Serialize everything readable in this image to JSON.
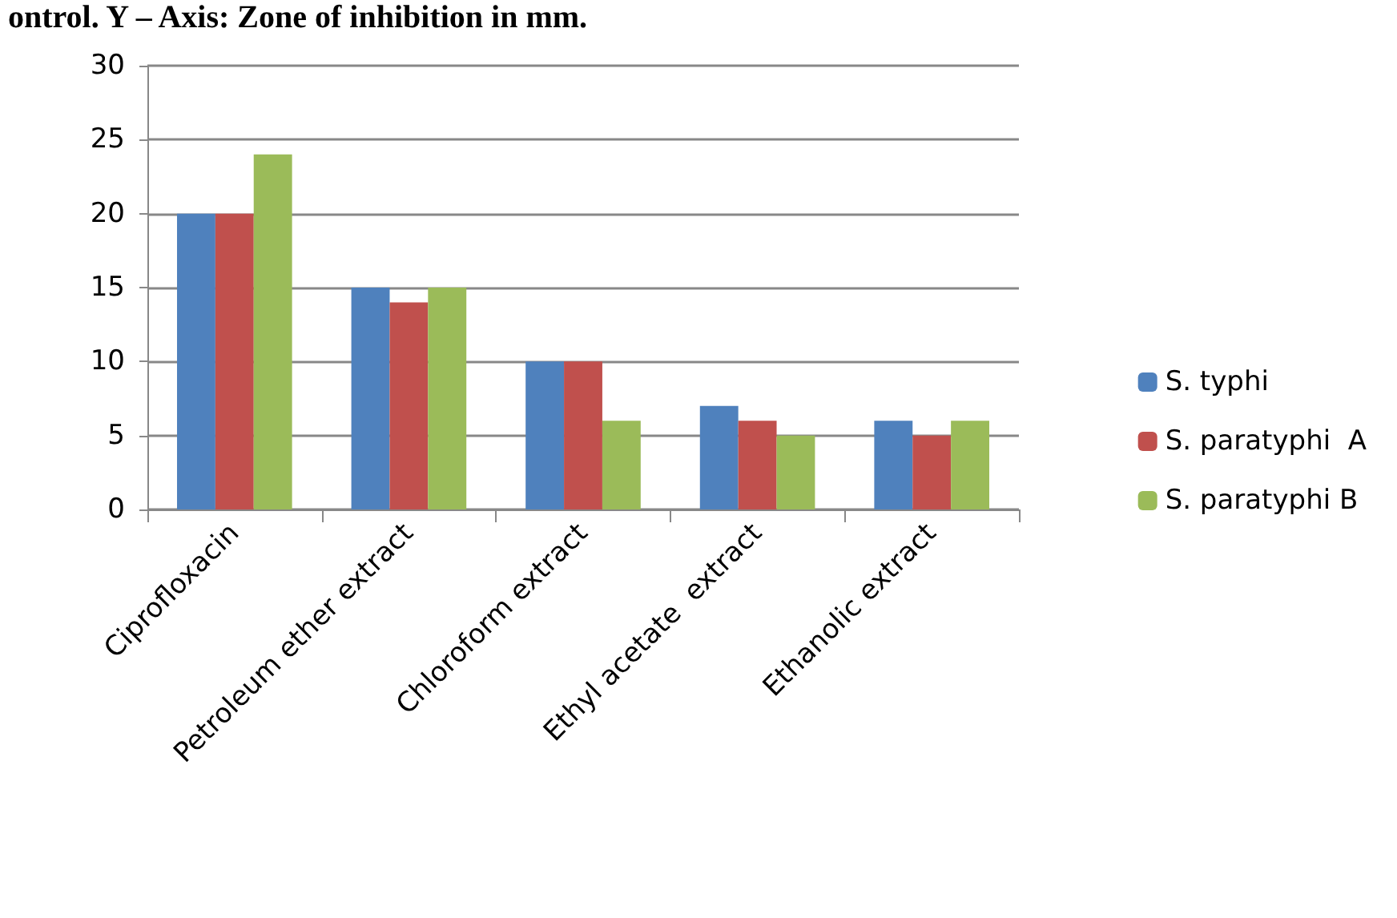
{
  "chart_data": {
    "type": "bar",
    "title": "ontrol. Y – Axis: Zone of inhibition in mm.",
    "categories": [
      "Ciprofloxacin",
      "Petroleum ether extract",
      "Chloroform extract",
      "Ethyl acetate  extract",
      "Ethanolic extract"
    ],
    "series": [
      {
        "name": "S. typhi",
        "color": "#4f81bd",
        "values": [
          20,
          15,
          10,
          7,
          6
        ]
      },
      {
        "name": "S. paratyphi  A",
        "color": "#c0504d",
        "values": [
          20,
          14,
          10,
          6,
          5
        ]
      },
      {
        "name": "S. paratyphi B",
        "color": "#9bbb59",
        "values": [
          24,
          15,
          6,
          5,
          6
        ]
      }
    ],
    "ylim": [
      0,
      30
    ],
    "yticks": [
      0,
      5,
      10,
      15,
      20,
      25,
      30
    ],
    "grid": "y",
    "legend": "right"
  }
}
